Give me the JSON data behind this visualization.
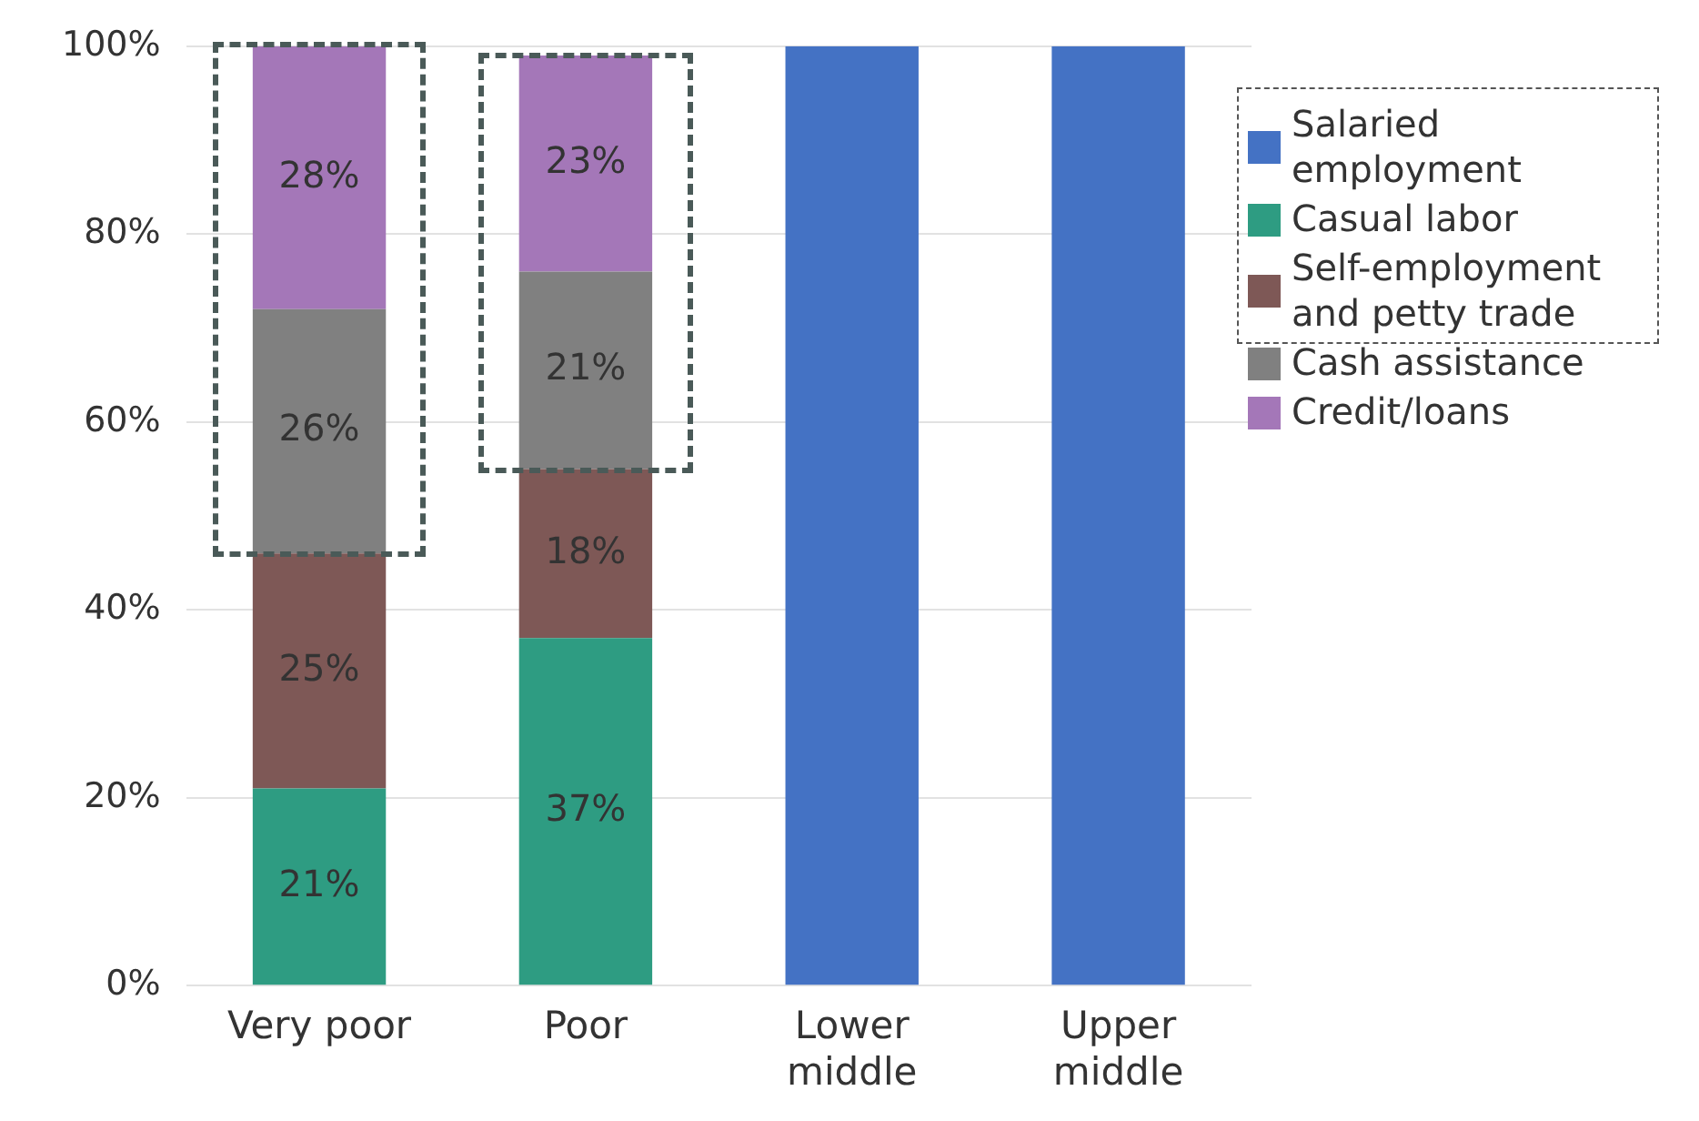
{
  "chart_data": {
    "type": "bar",
    "stacked": true,
    "categories": [
      "Very poor",
      "Poor",
      "Lower middle",
      "Upper middle"
    ],
    "series": [
      {
        "name": "Salaried employment",
        "color": "#4472c4",
        "values": [
          null,
          null,
          100,
          100
        ],
        "value_labels": [
          null,
          null,
          null,
          null
        ]
      },
      {
        "name": "Casual labor",
        "color": "#2e9c82",
        "values": [
          21,
          37,
          null,
          null
        ],
        "value_labels": [
          "21%",
          "37%",
          null,
          null
        ]
      },
      {
        "name": "Self-employment and petty trade",
        "color": "#7e5856",
        "values": [
          25,
          18,
          null,
          null
        ],
        "value_labels": [
          "25%",
          "18%",
          null,
          null
        ]
      },
      {
        "name": "Cash assistance",
        "color": "#808080",
        "values": [
          26,
          21,
          null,
          null
        ],
        "value_labels": [
          "26%",
          "21%",
          null,
          null
        ]
      },
      {
        "name": "Credit/loans",
        "color": "#a477b8",
        "values": [
          28,
          23,
          null,
          null
        ],
        "value_labels": [
          "28%",
          "23%",
          null,
          null
        ]
      }
    ],
    "ylim": [
      0,
      100
    ],
    "yticks": [
      {
        "value": 0,
        "label": "0%"
      },
      {
        "value": 20,
        "label": "20%"
      },
      {
        "value": 40,
        "label": "40%"
      },
      {
        "value": 60,
        "label": "60%"
      },
      {
        "value": 80,
        "label": "80%"
      },
      {
        "value": 100,
        "label": "100%"
      }
    ],
    "grid": "y",
    "legend": "top right"
  }
}
